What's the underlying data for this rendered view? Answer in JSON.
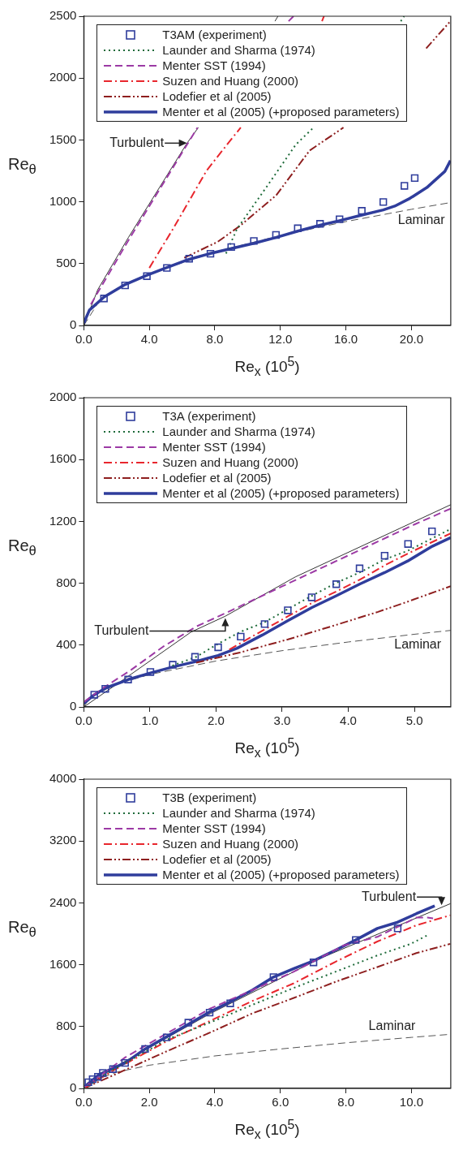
{
  "chart_data": [
    {
      "type": "line",
      "xlabel": "Re$_{x}$ (10$^{5}$)",
      "ylabel": "Re$_{θ}$",
      "xlim": [
        0,
        22.4
      ],
      "ylim": [
        0,
        2500
      ],
      "xticks": [
        {
          "value": 0,
          "label": "0.0"
        },
        {
          "value": 4,
          "label": "4.0"
        },
        {
          "value": 8,
          "label": "8.0"
        },
        {
          "value": 12,
          "label": "12.0"
        },
        {
          "value": 16,
          "label": "16.0"
        },
        {
          "value": 20,
          "label": "20.0"
        }
      ],
      "yticks": [
        0,
        500,
        1000,
        1500,
        2000,
        2500
      ],
      "legend": "top left",
      "annotations": [
        {
          "text": "Turbulent",
          "x": 6.3,
          "y": 1474
        },
        "Laminar"
      ],
      "series": [
        {
          "name": "T3AM (experiment)",
          "type": "scatter",
          "marker": "square",
          "color": "#2f3d9c",
          "x": [
            1.23,
            2.52,
            3.85,
            5.07,
            6.43,
            7.73,
            9.0,
            10.38,
            11.73,
            13.06,
            14.42,
            15.61,
            16.97,
            18.28,
            19.57,
            20.2
          ],
          "values": [
            218,
            324,
            399,
            465,
            540,
            580,
            634,
            683,
            732,
            786,
            822,
            859,
            927,
            998,
            1129,
            1192
          ]
        },
        {
          "name": "Launder and Sharma (1974)",
          "line_style": "dotted",
          "marker": "none",
          "color": "#1e6b3a",
          "x": [
            8.68,
            9.36,
            11.23,
            12.94,
            14.02,
            16.8,
            19.35,
            19.55
          ],
          "values": [
            582,
            782,
            1134,
            1462,
            1600,
            null,
            2460,
            2500
          ]
        },
        {
          "name": "Menter SST (1994)",
          "line_style": "dashed",
          "marker": "none",
          "color": "#9c3aa5",
          "x": [
            0.43,
            2.72,
            6.3,
            6.94,
            10,
            12.5,
            12.8
          ],
          "values": [
            171,
            688,
            1462,
            1600,
            null,
            2460,
            2500
          ]
        },
        {
          "name": "Suzen and Huang (2000)",
          "line_style": "dashdot",
          "marker": "none",
          "color": "#e8262d",
          "x": [
            4.0,
            5.45,
            7.49,
            9.02,
            9.58,
            12,
            14.54,
            14.66
          ],
          "values": [
            465,
            782,
            1251,
            1509,
            1600,
            null,
            2460,
            2500
          ]
        },
        {
          "name": "Lodefier et al (2005)",
          "line_style": "dashdotdot",
          "marker": "none",
          "color": "#8e1f1f",
          "x": [
            6.13,
            8.17,
            9.53,
            11.74,
            13.79,
            15.85,
            18.5,
            20.9,
            22.38
          ],
          "values": [
            547,
            676,
            805,
            1052,
            1415,
            1600,
            null,
            2240,
            2460
          ]
        },
        {
          "name": "Menter et al (2005) (+proposed parameters)",
          "line_style": "solid",
          "marker": "none",
          "color": "#2f3d9c",
          "x": [
            0,
            0.34,
            1.23,
            2.52,
            3.85,
            5.07,
            6.43,
            7.73,
            9.0,
            10.38,
            11.73,
            13.06,
            14.42,
            15.61,
            16.97,
            18.28,
            18.98,
            19.91,
            20.94,
            22.04,
            22.38
          ],
          "values": [
            19,
            124,
            230,
            331,
            406,
            469,
            535,
            582,
            622,
            664,
            711,
            763,
            810,
            847,
            892,
            934,
            965,
            1028,
            1115,
            1246,
            1333
          ]
        },
        {
          "line_style": "solid",
          "marker": "none",
          "color": "#333333",
          "x": [
            0,
            0.85,
            2.72,
            6.3,
            6.99,
            9,
            11.67,
            11.85
          ],
          "values": [
            0,
            289,
            711,
            1474,
            1600,
            null,
            2460,
            2500
          ]
        },
        {
          "line_style": "dashed",
          "marker": "none",
          "color": "#555555",
          "x": [
            0,
            1,
            2,
            4,
            8,
            12,
            16,
            20,
            22.4
          ],
          "values": [
            0,
            210,
            297,
            420,
            594,
            727,
            840,
            939,
            994
          ]
        }
      ]
    },
    {
      "type": "line",
      "xlabel": "Re$_{x}$ (10$^{5}$)",
      "ylabel": "Re$_{θ}$",
      "xlim": [
        0,
        5.55
      ],
      "ylim": [
        0,
        2000
      ],
      "xticks": [
        {
          "value": 0,
          "label": "0.0"
        },
        {
          "value": 1,
          "label": "1.0"
        },
        {
          "value": 2,
          "label": "2.0"
        },
        {
          "value": 3,
          "label": "3.0"
        },
        {
          "value": 4,
          "label": "4.0"
        },
        {
          "value": 5,
          "label": "5.0"
        }
      ],
      "yticks": [
        0,
        400,
        800,
        1200,
        1600,
        2000
      ],
      "legend": "top left",
      "annotations": [
        {
          "text": "Turbulent",
          "x": 2.14,
          "y": 575
        },
        "Laminar"
      ],
      "series": [
        {
          "name": "T3A (experiment)",
          "type": "scatter",
          "marker": "square",
          "color": "#2f3d9c",
          "x": [
            0.158,
            0.325,
            0.67,
            1.007,
            1.345,
            1.682,
            2.032,
            2.373,
            2.735,
            3.085,
            3.447,
            3.818,
            4.171,
            4.55,
            4.904,
            5.266
          ],
          "values": [
            79,
            117,
            177,
            226,
            273,
            324,
            386,
            455,
            536,
            625,
            709,
            794,
            896,
            978,
            1054,
            1136
          ]
        },
        {
          "name": "Launder and Sharma (1974)",
          "line_style": "dotted",
          "marker": "none",
          "color": "#1e6b3a",
          "x": [
            1.34,
            1.7,
            2.03,
            2.36,
            2.74,
            3.09,
            3.45,
            3.82,
            4.17,
            4.55,
            4.9,
            5.55
          ],
          "values": [
            267,
            324,
            408,
            484,
            549,
            634,
            719,
            803,
            869,
            954,
            1010,
            1151
          ]
        },
        {
          "name": "Menter SST (1994)",
          "line_style": "dashed",
          "marker": "none",
          "color": "#9c3aa5",
          "x": [
            0,
            0.3,
            0.7,
            1.2,
            1.7,
            2.14,
            3.0,
            4.0,
            5.0,
            5.55
          ],
          "values": [
            32,
            125,
            235,
            390,
            520,
            606,
            780,
            980,
            1180,
            1283
          ]
        },
        {
          "name": "Suzen and Huang (2000)",
          "line_style": "dashdot",
          "marker": "none",
          "color": "#e8262d",
          "x": [
            2.2,
            2.7,
            3.09,
            3.45,
            3.82,
            4.17,
            4.55,
            4.9,
            5.55
          ],
          "values": [
            371,
            493,
            587,
            672,
            747,
            822,
            916,
            992,
            1123
          ]
        },
        {
          "name": "Lodefier et al (2005)",
          "line_style": "dashdotdot",
          "marker": "none",
          "color": "#8e1f1f",
          "x": [
            1.7,
            2.36,
            3.09,
            3.82,
            4.45,
            4.9,
            5.55
          ],
          "values": [
            286,
            352,
            437,
            531,
            615,
            681,
            781
          ]
        },
        {
          "name": "Menter et al (2005) (+proposed parameters)",
          "line_style": "solid",
          "marker": "none",
          "color": "#2f3d9c",
          "x": [
            0,
            0.16,
            0.33,
            0.67,
            1.01,
            1.34,
            1.68,
            2.03,
            2.32,
            2.7,
            3.09,
            3.45,
            3.82,
            4.17,
            4.55,
            4.9,
            5.27,
            5.55
          ],
          "values": [
            23,
            79,
            122,
            177,
            220,
            258,
            292,
            333,
            380,
            465,
            559,
            643,
            719,
            794,
            869,
            944,
            1039,
            1095
          ]
        },
        {
          "line_style": "solid",
          "marker": "none",
          "color": "#333333",
          "x": [
            0,
            0.62,
            1.62,
            2.14,
            3.2,
            5.55
          ],
          "values": [
            0,
            183,
            484,
            587,
            841,
            1308
          ]
        },
        {
          "line_style": "dashed",
          "marker": "none",
          "color": "#555555",
          "x": [
            0,
            0.1,
            0.5,
            1,
            2,
            3,
            4,
            5,
            5.55
          ],
          "values": [
            0,
            66,
            148,
            210,
            297,
            364,
            420,
            470,
            495
          ]
        }
      ]
    },
    {
      "type": "line",
      "xlabel": "Re$_{x}$ (10$^{5}$)",
      "ylabel": "Re$_{θ}$",
      "xlim": [
        0,
        11.2
      ],
      "ylim": [
        0,
        4000
      ],
      "xticks": [
        {
          "value": 0,
          "label": "0.0"
        },
        {
          "value": 2,
          "label": "2.0"
        },
        {
          "value": 4,
          "label": "4.0"
        },
        {
          "value": 6,
          "label": "6.0"
        },
        {
          "value": 8,
          "label": "8.0"
        },
        {
          "value": 10,
          "label": "10.0"
        }
      ],
      "yticks": [
        0,
        800,
        1600,
        2400,
        3200,
        4000
      ],
      "legend": "top left",
      "annotations": [
        {
          "text": "Turbulent",
          "x": 10.92,
          "y": 2370
        },
        "Laminar"
      ],
      "series": [
        {
          "name": "T3B (experiment)",
          "type": "scatter",
          "marker": "square",
          "color": "#2f3d9c",
          "x": [
            0.14,
            0.27,
            0.43,
            0.58,
            0.89,
            1.26,
            1.87,
            2.53,
            3.19,
            3.84,
            4.47,
            5.79,
            7.01,
            8.3,
            9.58
          ],
          "values": [
            80,
            120,
            150,
            200,
            250,
            330,
            510,
            660,
            850,
            980,
            1100,
            1440,
            1630,
            1920,
            2070
          ]
        },
        {
          "name": "Launder and Sharma (1974)",
          "line_style": "dotted",
          "marker": "none",
          "color": "#1e6b3a",
          "x": [
            0,
            0.89,
            2.53,
            3.84,
            5.14,
            6.41,
            7.69,
            8.96,
            9.98,
            10.53
          ],
          "values": [
            0,
            240,
            630,
            850,
            1080,
            1300,
            1510,
            1720,
            1870,
            1990
          ]
        },
        {
          "name": "Menter SST (1994)",
          "line_style": "dashed",
          "marker": "none",
          "color": "#9c3aa5",
          "x": [
            0,
            1.26,
            2.53,
            3.84,
            5.14,
            6.41,
            7.94,
            8.96,
            10.15,
            10.49,
            10.66
          ],
          "values": [
            10,
            400,
            710,
            1030,
            1270,
            1510,
            1850,
            1960,
            2210,
            2210,
            2200
          ]
        },
        {
          "name": "Suzen and Huang (2000)",
          "line_style": "dashdot",
          "marker": "none",
          "color": "#e8262d",
          "x": [
            0,
            0.89,
            2.53,
            3.84,
            5.14,
            6.41,
            7.69,
            8.96,
            10.15,
            11.19
          ],
          "values": [
            0,
            230,
            610,
            870,
            1130,
            1360,
            1640,
            1900,
            2110,
            2240
          ]
        },
        {
          "name": "Lodefier et al (2005)",
          "line_style": "dashdotdot",
          "marker": "none",
          "color": "#8e1f1f",
          "x": [
            0,
            1.32,
            2.53,
            3.84,
            5.14,
            6.41,
            7.69,
            8.96,
            10.15,
            11.19
          ],
          "values": [
            0,
            250,
            480,
            720,
            970,
            1170,
            1380,
            1570,
            1750,
            1870
          ]
        },
        {
          "name": "Menter et al (2005) (+proposed parameters)",
          "line_style": "solid",
          "marker": "none",
          "color": "#2f3d9c",
          "x": [
            0,
            0.47,
            1.26,
            1.87,
            2.53,
            3.19,
            3.84,
            4.47,
            5.14,
            5.79,
            6.41,
            7.01,
            7.69,
            8.3,
            8.96,
            9.58,
            10.15,
            10.71
          ],
          "values": [
            10,
            180,
            330,
            510,
            670,
            830,
            990,
            1120,
            1270,
            1440,
            1550,
            1650,
            1790,
            1920,
            2070,
            2150,
            2260,
            2360
          ]
        },
        {
          "line_style": "solid",
          "marker": "none",
          "color": "#333333",
          "x": [
            0,
            1,
            3.87,
            7.26,
            11.19
          ],
          "values": [
            0,
            290,
            970,
            1690,
            2390
          ]
        },
        {
          "line_style": "dashed",
          "marker": "none",
          "color": "#555555",
          "x": [
            0,
            0.1,
            1,
            2,
            4,
            6,
            8,
            10,
            11.2
          ],
          "values": [
            0,
            70,
            210,
            300,
            420,
            510,
            590,
            660,
            700
          ]
        }
      ]
    }
  ]
}
